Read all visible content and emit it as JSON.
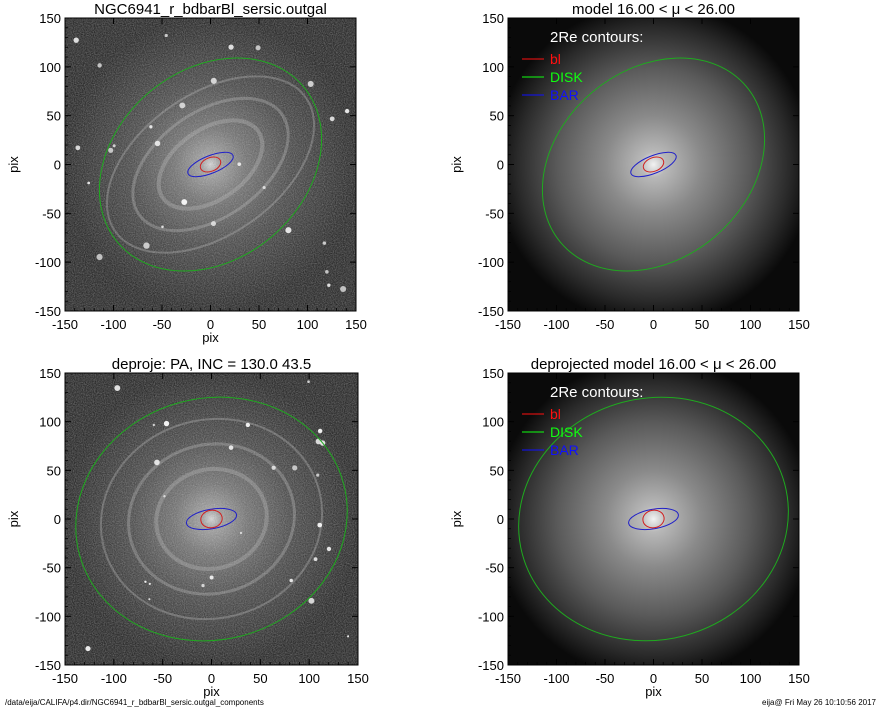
{
  "chart_data": [
    {
      "type": "image",
      "title": "NGC6941_r_bdbarBl_sersic.outgal",
      "xlabel": "pix",
      "ylabel": "pix",
      "xlim": [
        -150,
        150
      ],
      "ylim": [
        -150,
        150
      ],
      "xticks": [
        "-150",
        "-100",
        "-50",
        "0",
        "50",
        "100",
        "150"
      ],
      "yticks": [
        "150",
        "100",
        "50",
        "0",
        "-50",
        "-100",
        "-150"
      ],
      "panel_style": "noisy-galaxy",
      "legend_title": "",
      "legend_items": [],
      "contours": [
        {
          "name": "DISK",
          "color": "#1faa1f",
          "cx": 0,
          "cy": 0,
          "rx": 125,
          "ry": 97,
          "angle_deg": 40
        },
        {
          "name": "BAR",
          "color": "#2020c8",
          "cx": 0,
          "cy": 0,
          "rx": 25,
          "ry": 9,
          "angle_deg": 22
        },
        {
          "name": "bl",
          "color": "#d02020",
          "cx": 0,
          "cy": 0,
          "rx": 11,
          "ry": 7,
          "angle_deg": 22
        }
      ]
    },
    {
      "type": "image",
      "title": "model  16.00 < μ <  26.00",
      "xlabel": "",
      "ylabel": "pix",
      "xlim": [
        -150,
        150
      ],
      "ylim": [
        -150,
        150
      ],
      "xticks": [
        "-150",
        "-100",
        "-50",
        "0",
        "50",
        "100",
        "150"
      ],
      "yticks": [
        "150",
        "100",
        "50",
        "0",
        "-50",
        "-100",
        "-150"
      ],
      "panel_style": "model",
      "legend_title": "2Re contours:",
      "legend_items": [
        {
          "label": "bl",
          "color": "#ff1010"
        },
        {
          "label": "DISK",
          "color": "#10ff10"
        },
        {
          "label": "BAR",
          "color": "#1010ff"
        }
      ],
      "contours": [
        {
          "name": "DISK",
          "color": "#1faa1f",
          "cx": 0,
          "cy": 0,
          "rx": 125,
          "ry": 97,
          "angle_deg": 40
        },
        {
          "name": "BAR",
          "color": "#2020c8",
          "cx": 0,
          "cy": 0,
          "rx": 25,
          "ry": 9,
          "angle_deg": 22
        },
        {
          "name": "bl",
          "color": "#d02020",
          "cx": 0,
          "cy": 0,
          "rx": 11,
          "ry": 7,
          "angle_deg": 22
        }
      ]
    },
    {
      "type": "image",
      "title": "deproje: PA, INC = 130.0    43.5",
      "xlabel": "pix",
      "ylabel": "pix",
      "xlim": [
        -150,
        150
      ],
      "ylim": [
        -150,
        150
      ],
      "xticks": [
        "-150",
        "-100",
        "-50",
        "0",
        "50",
        "100",
        "150"
      ],
      "yticks": [
        "150",
        "100",
        "50",
        "0",
        "-50",
        "-100",
        "-150"
      ],
      "panel_style": "noisy-galaxy",
      "legend_title": "",
      "legend_items": [],
      "contours": [
        {
          "name": "DISK",
          "color": "#1faa1f",
          "cx": 0,
          "cy": 0,
          "rx": 140,
          "ry": 124,
          "angle_deg": 15
        },
        {
          "name": "BAR",
          "color": "#2020c8",
          "cx": 0,
          "cy": 0,
          "rx": 26,
          "ry": 10,
          "angle_deg": 10
        },
        {
          "name": "bl",
          "color": "#d02020",
          "cx": 0,
          "cy": 0,
          "rx": 11,
          "ry": 9,
          "angle_deg": 10
        }
      ]
    },
    {
      "type": "image",
      "title": "deprojected model  16.00 < μ <  26.00",
      "xlabel": "pix",
      "ylabel": "pix",
      "xlim": [
        -150,
        150
      ],
      "ylim": [
        -150,
        150
      ],
      "xticks": [
        "-150",
        "-100",
        "-50",
        "0",
        "50",
        "100",
        "150"
      ],
      "yticks": [
        "150",
        "100",
        "50",
        "0",
        "-50",
        "-100",
        "-150"
      ],
      "panel_style": "model",
      "legend_title": "2Re contours:",
      "legend_items": [
        {
          "label": "bl",
          "color": "#ff1010"
        },
        {
          "label": "DISK",
          "color": "#10ff10"
        },
        {
          "label": "BAR",
          "color": "#1010ff"
        }
      ],
      "contours": [
        {
          "name": "DISK",
          "color": "#1faa1f",
          "cx": 0,
          "cy": 0,
          "rx": 140,
          "ry": 124,
          "angle_deg": 15
        },
        {
          "name": "BAR",
          "color": "#2020c8",
          "cx": 0,
          "cy": 0,
          "rx": 26,
          "ry": 10,
          "angle_deg": 10
        },
        {
          "name": "bl",
          "color": "#d02020",
          "cx": 0,
          "cy": 0,
          "rx": 11,
          "ry": 9,
          "angle_deg": 10
        }
      ]
    }
  ],
  "footer": {
    "path": "/data/eija/CALIFA/p4.dir/NGC6941_r_bdbarBl_sersic.outgal_components",
    "stamp": "eija@  Fri May 26 10:10:56 2017"
  }
}
